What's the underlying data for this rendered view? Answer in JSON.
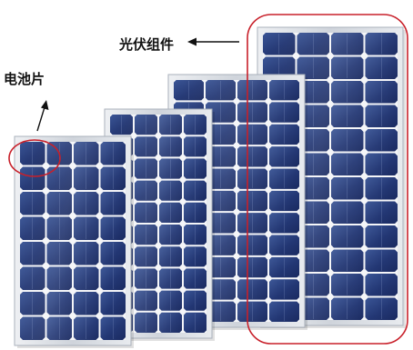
{
  "labels": {
    "module": "光伏组件",
    "cell": "电池片"
  },
  "palette": {
    "background": "#ffffff",
    "cell_dark": "#1e2f6a",
    "cell_light": "#36508f",
    "frame": "#d9dde3",
    "highlight": "#c8202a",
    "arrow": "#111111"
  },
  "panels": [
    {
      "name": "panel-small",
      "rows": 8,
      "cols": 4
    },
    {
      "name": "panel-medium",
      "rows": 10,
      "cols": 4
    },
    {
      "name": "panel-large",
      "rows": 11,
      "cols": 4
    },
    {
      "name": "panel-largest",
      "rows": 12,
      "cols": 4
    }
  ],
  "annotations": {
    "module_highlight": "module-highlight-ellipse",
    "cell_highlight": "cell-highlight-ellipse"
  }
}
